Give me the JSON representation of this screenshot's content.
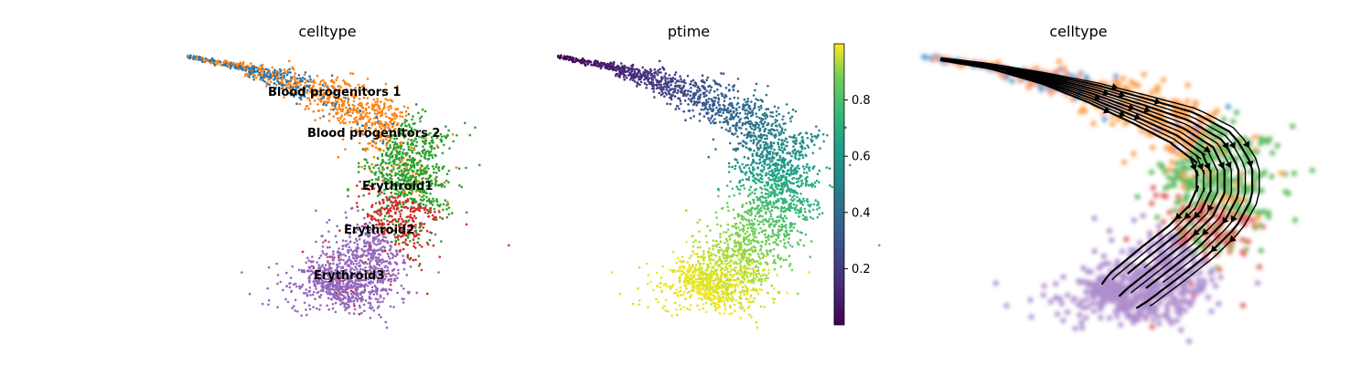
{
  "chart_data": [
    {
      "type": "scatter",
      "title": "celltype",
      "xlabel": "",
      "ylabel": "",
      "legend": "on data",
      "categories": [
        "Blood progenitors 1",
        "Blood progenitors 2",
        "Erythroid1",
        "Erythroid2",
        "Erythroid3"
      ],
      "colors": [
        "#1f77b4",
        "#ff7f0e",
        "#2ca02c",
        "#d62728",
        "#9467bd"
      ],
      "category_labels": [
        "Blood progenitors 1",
        "Blood progenitors 2",
        "Erythroid1",
        "Erythroid2",
        "Erythroid3"
      ]
    },
    {
      "type": "scatter",
      "title": "ptime",
      "xlabel": "",
      "ylabel": "",
      "colorbar": {
        "min": 0.0,
        "max": 1.0,
        "ticks": [
          0.2,
          0.4,
          0.6,
          0.8
        ],
        "tick_labels": [
          "0.2",
          "0.4",
          "0.6",
          "0.8"
        ],
        "colormap": "viridis"
      }
    },
    {
      "type": "scatter",
      "title": "celltype",
      "xlabel": "",
      "ylabel": "",
      "overlay": "velocity streamlines",
      "colors": [
        "#1f77b4",
        "#ff7f0e",
        "#2ca02c",
        "#d62728",
        "#9467bd"
      ]
    }
  ]
}
